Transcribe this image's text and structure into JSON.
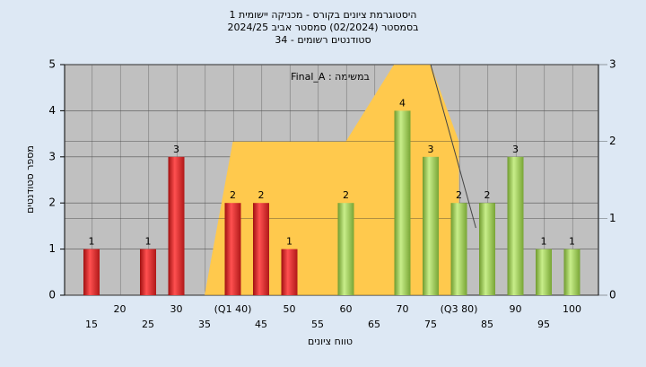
{
  "chart_data": {
    "type": "bar",
    "title": [
      "היסטוגרמת ציונים בקורס - מכניקה יישומית 1",
      "בסמסטר  (02/2024)  סמסטר אביב 2024/25",
      "סטודנטים רשומים - 34"
    ],
    "annotation": "Final_A : במשימה",
    "ylabel": "מספר סטודנטים",
    "xlabel": "טווח ציונים",
    "categories": [
      "15",
      "20",
      "25",
      "30",
      "35",
      "(Q1 40)",
      "45",
      "50",
      "55",
      "60",
      "65",
      "70",
      "75",
      "(Q3 80)",
      "85",
      "90",
      "95",
      "100"
    ],
    "values": [
      1,
      0,
      1,
      3,
      0,
      2,
      2,
      1,
      0,
      2,
      0,
      4,
      3,
      2,
      2,
      3,
      1,
      1
    ],
    "colors": [
      "red",
      "red",
      "red",
      "red",
      "red",
      "red",
      "red",
      "red",
      "green",
      "green",
      "green",
      "green",
      "green",
      "green",
      "green",
      "green",
      "green",
      "green"
    ],
    "ylim": [
      0,
      5
    ],
    "yticks": [
      0,
      1,
      2,
      3,
      4,
      5
    ],
    "y2lim": [
      0,
      3
    ],
    "y2ticks": [
      0,
      1,
      2,
      3
    ],
    "area": {
      "axis": "y2",
      "color": "#ffc94d",
      "x": [
        35,
        40,
        60,
        68.5,
        75,
        80
      ],
      "values": [
        0,
        2,
        2,
        3,
        3,
        2
      ]
    },
    "grid": true
  }
}
